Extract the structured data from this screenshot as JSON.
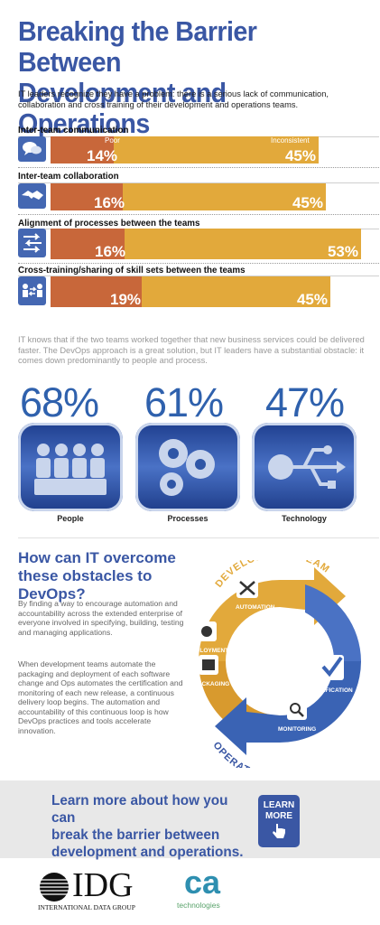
{
  "header": {
    "title_line1": "Breaking the Barrier Between",
    "title_line2": "Development and Operations",
    "intro": "IT leaders recognize they have a problem: there is a serious lack of communication, collaboration and cross training of their development and operations teams."
  },
  "bar_sections": [
    {
      "label": "Inter-team communication",
      "icon": "speech-bubbles-icon",
      "poor_tag": "Poor",
      "inconsistent_tag": "Inconsistent",
      "poor_pct": "14%",
      "inconsistent_pct": "45%",
      "poor": 14,
      "inconsistent": 45
    },
    {
      "label": "Inter-team collaboration",
      "icon": "handshake-icon",
      "poor_pct": "16%",
      "inconsistent_pct": "45%",
      "poor": 16,
      "inconsistent": 45
    },
    {
      "label": "Alignment of processes between the teams",
      "icon": "arrows-process-icon",
      "poor_pct": "16%",
      "inconsistent_pct": "53%",
      "poor": 16,
      "inconsistent": 53
    },
    {
      "label": "Cross-training/sharing of skill sets between the teams",
      "icon": "people-training-icon",
      "poor_pct": "19%",
      "inconsistent_pct": "45%",
      "poor": 19,
      "inconsistent": 45
    }
  ],
  "obstacle": {
    "text": "IT knows that if the two teams worked together that new business services could be delivered faster. The DevOps approach is a great solution, but IT leaders have a substantial obstacle: it comes down predominantly to people and process.",
    "stats": [
      {
        "value": "68%",
        "caption": "People",
        "icon": "people-group-icon"
      },
      {
        "value": "61%",
        "caption": "Processes",
        "icon": "gears-icon"
      },
      {
        "value": "47%",
        "caption": "Technology",
        "icon": "usb-icon"
      }
    ]
  },
  "devops": {
    "question_line1": "How can IT overcome",
    "question_line2": "these obstacles to DevOps?",
    "para1": "By finding a way to encourage automation and accountability across the extended enterprise of everyone involved in specifying, building, testing and managing applications.",
    "para2": "When development teams automate the packaging and deployment of each software change and Ops automates the certification and monitoring of each new release, a continuous delivery loop begins. The automation and accountability of this continuous loop is how DevOps practices and tools accelerate innovation.",
    "cycle": {
      "top_label": "DEVELOPMENT TEAM",
      "bottom_label": "OPERATIONS TEAM",
      "automation": "AUTOMATION",
      "deployment": "DEPLOYMENT",
      "packaging": "PACKAGING",
      "certification": "CERTIFICATION",
      "monitoring": "MONITORING"
    }
  },
  "cta": {
    "line1": "Learn more about how you can",
    "line2": "break the barrier between",
    "line3": "development and operations.",
    "button_line1": "LEARN",
    "button_line2": "MORE"
  },
  "footer": {
    "idg": "IDG",
    "idg_sub": "INTERNATIONAL DATA GROUP",
    "ca": "ca",
    "ca_sub": "technologies"
  },
  "colors": {
    "blue": "#3a57a4",
    "orange": "#c8673a",
    "yellow": "#e2a93b"
  }
}
